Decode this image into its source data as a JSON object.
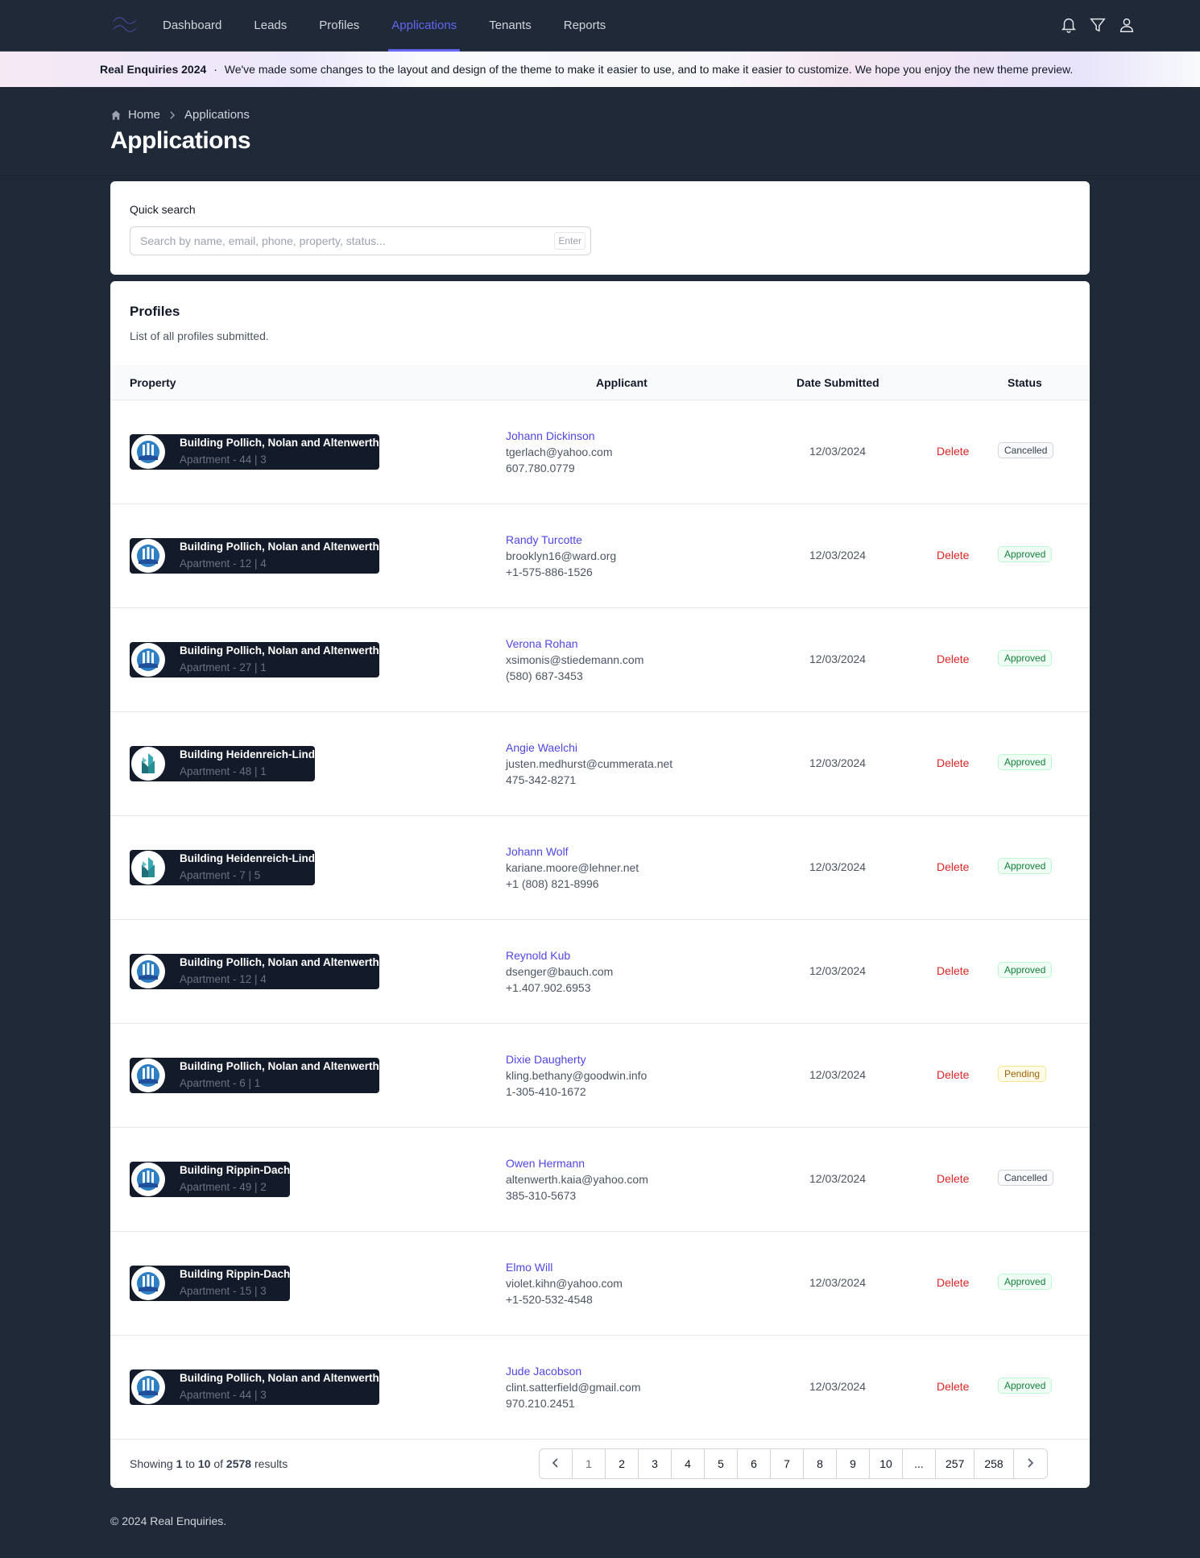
{
  "nav": {
    "links": [
      "Dashboard",
      "Leads",
      "Profiles",
      "Applications",
      "Tenants",
      "Reports"
    ],
    "active": "Applications",
    "icons": [
      "bell-icon",
      "filter-icon",
      "user-icon"
    ]
  },
  "banner": {
    "brand": "Real Enquiries 2024",
    "separator": "·",
    "message": "We've made some changes to the layout and design of the theme to make it easier to use, and to make it easier to customize. We hope you enjoy the new theme preview."
  },
  "breadcrumb": {
    "home": "Home",
    "current": "Applications"
  },
  "page_title": "Applications",
  "search": {
    "label": "Quick search",
    "placeholder": "Search by name, email, phone, property, status...",
    "kbd": "Enter"
  },
  "profiles": {
    "title": "Profiles",
    "subtitle": "List of all profiles submitted.",
    "columns": {
      "property": "Property",
      "applicant": "Applicant",
      "date": "Date Submitted",
      "status": "Status"
    },
    "delete_label": "Delete",
    "rows": [
      {
        "building": "Building Pollich, Nolan and Altenwerth",
        "apt": "Apartment - 44 | 3",
        "logo": "blue",
        "name": "Johann Dickinson",
        "email": "tgerlach@yahoo.com",
        "phone": "607.780.0779",
        "date": "12/03/2024",
        "status": "Cancelled"
      },
      {
        "building": "Building Pollich, Nolan and Altenwerth",
        "apt": "Apartment - 12 | 4",
        "logo": "blue",
        "name": "Randy Turcotte",
        "email": "brooklyn16@ward.org",
        "phone": "+1-575-886-1526",
        "date": "12/03/2024",
        "status": "Approved"
      },
      {
        "building": "Building Pollich, Nolan and Altenwerth",
        "apt": "Apartment - 27 | 1",
        "logo": "blue",
        "name": "Verona Rohan",
        "email": "xsimonis@stiedemann.com",
        "phone": "(580) 687-3453",
        "date": "12/03/2024",
        "status": "Approved"
      },
      {
        "building": "Building Heidenreich-Lind",
        "apt": "Apartment - 48 | 1",
        "logo": "teal",
        "name": "Angie Waelchi",
        "email": "justen.medhurst@cummerata.net",
        "phone": "475-342-8271",
        "date": "12/03/2024",
        "status": "Approved"
      },
      {
        "building": "Building Heidenreich-Lind",
        "apt": "Apartment - 7 | 5",
        "logo": "teal",
        "name": "Johann Wolf",
        "email": "kariane.moore@lehner.net",
        "phone": "+1 (808) 821-8996",
        "date": "12/03/2024",
        "status": "Approved"
      },
      {
        "building": "Building Pollich, Nolan and Altenwerth",
        "apt": "Apartment - 12 | 4",
        "logo": "blue",
        "name": "Reynold Kub",
        "email": "dsenger@bauch.com",
        "phone": "+1.407.902.6953",
        "date": "12/03/2024",
        "status": "Approved"
      },
      {
        "building": "Building Pollich, Nolan and Altenwerth",
        "apt": "Apartment - 6 | 1",
        "logo": "blue",
        "name": "Dixie Daugherty",
        "email": "kling.bethany@goodwin.info",
        "phone": "1-305-410-1672",
        "date": "12/03/2024",
        "status": "Pending"
      },
      {
        "building": "Building Rippin-Dach",
        "apt": "Apartment - 49 | 2",
        "logo": "blue",
        "name": "Owen Hermann",
        "email": "altenwerth.kaia@yahoo.com",
        "phone": "385-310-5673",
        "date": "12/03/2024",
        "status": "Cancelled"
      },
      {
        "building": "Building Rippin-Dach",
        "apt": "Apartment - 15 | 3",
        "logo": "blue",
        "name": "Elmo Will",
        "email": "violet.kihn@yahoo.com",
        "phone": "+1-520-532-4548",
        "date": "12/03/2024",
        "status": "Approved"
      },
      {
        "building": "Building Pollich, Nolan and Altenwerth",
        "apt": "Apartment - 44 | 3",
        "logo": "blue",
        "name": "Jude Jacobson",
        "email": "clint.satterfield@gmail.com",
        "phone": "970.210.2451",
        "date": "12/03/2024",
        "status": "Approved"
      }
    ]
  },
  "pagination": {
    "showing_prefix": "Showing",
    "from": "1",
    "to_word": "to",
    "to": "10",
    "of_word": "of",
    "total": "2578",
    "results_word": "results",
    "pages": [
      "1",
      "2",
      "3",
      "4",
      "5",
      "6",
      "7",
      "8",
      "9",
      "10",
      "...",
      "257",
      "258"
    ],
    "current": "1"
  },
  "footer": "© 2024 Real Enquiries.",
  "colors": {
    "accent": "#6366f1",
    "delete": "#dc2626",
    "background": "#1f2937"
  }
}
